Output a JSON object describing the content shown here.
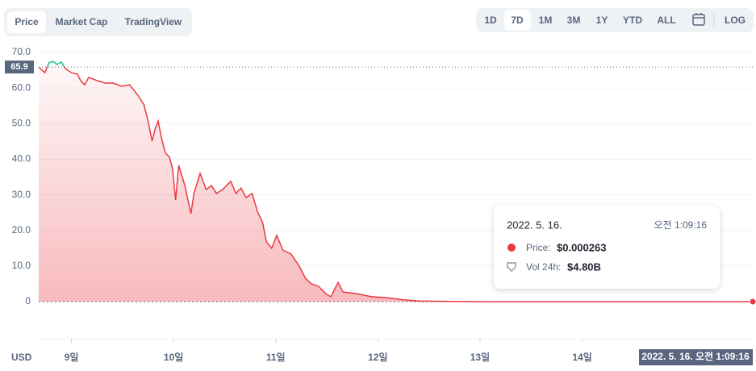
{
  "chart_data": {
    "type": "line",
    "tabs": [
      "Price",
      "Market Cap",
      "TradingView"
    ],
    "ranges": [
      "1D",
      "7D",
      "1M",
      "3M",
      "1Y",
      "YTD",
      "ALL"
    ],
    "log_button": "LOG",
    "y_label": "USD",
    "x": [
      8.68,
      8.74,
      8.78,
      8.82,
      8.86,
      8.9,
      8.94,
      9.0,
      9.06,
      9.09,
      9.13,
      9.17,
      9.25,
      9.33,
      9.41,
      9.49,
      9.57,
      9.65,
      9.71,
      9.75,
      9.79,
      9.82,
      9.85,
      9.88,
      9.92,
      9.96,
      9.99,
      10.02,
      10.05,
      10.11,
      10.17,
      10.2,
      10.26,
      10.32,
      10.37,
      10.42,
      10.48,
      10.56,
      10.61,
      10.66,
      10.71,
      10.77,
      10.82,
      10.87,
      10.91,
      10.96,
      11.01,
      11.07,
      11.15,
      11.23,
      11.29,
      11.35,
      11.42,
      11.5,
      11.54,
      11.61,
      11.66,
      11.78,
      11.94,
      12.1,
      12.25,
      12.41,
      12.73,
      13.04,
      13.83,
      14.62,
      15.67
    ],
    "values": [
      65.9,
      64.3,
      67.1,
      67.5,
      66.6,
      67.3,
      65.5,
      64.3,
      63.9,
      62.1,
      60.9,
      63.0,
      62.1,
      61.4,
      61.4,
      60.5,
      60.9,
      58.0,
      55.3,
      50.7,
      45.1,
      48.5,
      50.7,
      46.2,
      41.7,
      40.6,
      37.2,
      28.5,
      38.3,
      32.6,
      24.7,
      30.4,
      36.0,
      31.5,
      32.6,
      30.4,
      31.5,
      33.8,
      30.4,
      31.9,
      29.2,
      30.4,
      25.4,
      22.4,
      16.8,
      15.0,
      18.6,
      14.5,
      13.4,
      10.0,
      6.6,
      5.0,
      4.3,
      2.0,
      1.4,
      5.4,
      2.7,
      2.3,
      1.4,
      1.1,
      0.5,
      0.2,
      0.05,
      0.02,
      0.005,
      0.001,
      0.000263
    ],
    "color": "#ea3943",
    "up_color": "#16c784",
    "baseline": 65.9,
    "xlim": [
      8.68,
      15.67
    ],
    "xticks": [
      {
        "value": 9,
        "label": "9일"
      },
      {
        "value": 10,
        "label": "10일"
      },
      {
        "value": 11,
        "label": "11일"
      },
      {
        "value": 12,
        "label": "12일"
      },
      {
        "value": 13,
        "label": "13일"
      },
      {
        "value": 14,
        "label": "14일"
      }
    ],
    "ylim": [
      -11,
      71.5
    ],
    "yticks": [
      0,
      {
        "value": 10,
        "label": "10.0"
      },
      {
        "value": 20,
        "label": "20.0"
      },
      {
        "value": 30,
        "label": "30.0"
      },
      {
        "value": 40,
        "label": "40.0"
      },
      {
        "value": 50,
        "label": "50.0"
      },
      {
        "value": 60,
        "label": "60.0"
      },
      {
        "value": 70,
        "label": "70.0"
      }
    ],
    "grid": true,
    "crosshair_label": "2022. 5. 16. 오전 1:09:16",
    "tooltip": {
      "date": "2022. 5. 16.",
      "time": "오전 1:09:16",
      "price_label": "Price:",
      "price": "$0.000263",
      "volume_label": "Vol 24h:",
      "volume": "$4.80B"
    }
  }
}
